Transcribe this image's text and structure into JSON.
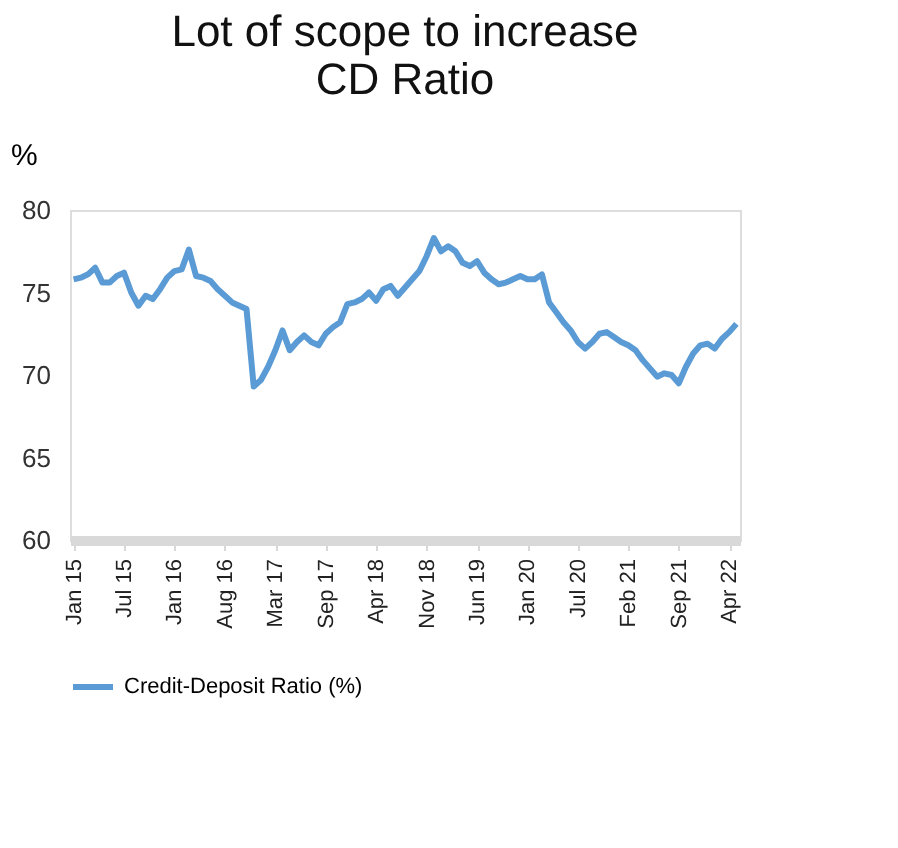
{
  "chart_data": {
    "type": "line",
    "title": "Lot of scope to increase CD Ratio",
    "ylabel": "%",
    "categories": [
      "Jan 15",
      null,
      null,
      null,
      null,
      null,
      null,
      "Jul 15",
      null,
      null,
      null,
      null,
      null,
      null,
      "Jan 16",
      null,
      null,
      null,
      null,
      null,
      null,
      "Aug 16",
      null,
      null,
      null,
      null,
      null,
      null,
      "Mar 17",
      null,
      null,
      null,
      null,
      null,
      null,
      "Sep 17",
      null,
      null,
      null,
      null,
      null,
      null,
      "Apr 18",
      null,
      null,
      null,
      null,
      null,
      null,
      "Nov 18",
      null,
      null,
      null,
      null,
      null,
      null,
      "Jun 19",
      null,
      null,
      null,
      null,
      null,
      null,
      "Jan 20",
      null,
      null,
      null,
      null,
      null,
      null,
      "Jul 20",
      null,
      null,
      null,
      null,
      null,
      null,
      "Feb 21",
      null,
      null,
      null,
      null,
      null,
      null,
      "Sep 21",
      null,
      null,
      null,
      null,
      null,
      null,
      "Apr 22",
      null
    ],
    "series": [
      {
        "name": "Credit-Deposit Ratio (%)",
        "color": "#5b9bd5",
        "values": [
          75.8,
          75.9,
          76.1,
          76.5,
          75.6,
          75.6,
          76.0,
          76.2,
          75.0,
          74.2,
          74.8,
          74.6,
          75.2,
          75.9,
          76.3,
          76.4,
          77.6,
          76.0,
          75.9,
          75.7,
          75.2,
          74.8,
          74.4,
          74.2,
          74.0,
          69.3,
          69.7,
          70.5,
          71.5,
          72.7,
          71.5,
          72.0,
          72.4,
          72.0,
          71.8,
          72.5,
          72.9,
          73.2,
          74.3,
          74.4,
          74.6,
          75.0,
          74.5,
          75.2,
          75.4,
          74.8,
          75.3,
          75.8,
          76.3,
          77.2,
          78.3,
          77.5,
          77.8,
          77.5,
          76.8,
          76.6,
          76.9,
          76.2,
          75.8,
          75.5,
          75.6,
          75.8,
          76.0,
          75.8,
          75.8,
          76.1,
          74.4,
          73.8,
          73.2,
          72.7,
          72.0,
          71.6,
          72.0,
          72.5,
          72.6,
          72.3,
          72.0,
          71.8,
          71.5,
          70.9,
          70.4,
          69.9,
          70.1,
          70.0,
          69.5,
          70.5,
          71.3,
          71.8,
          71.9,
          71.6,
          72.2,
          72.6,
          73.1
        ]
      }
    ],
    "ylim": [
      60,
      80
    ],
    "yticks": [
      60,
      65,
      70,
      75,
      80
    ],
    "grid": false,
    "legend": "bottom",
    "line_style": "solid",
    "marker": "none"
  }
}
